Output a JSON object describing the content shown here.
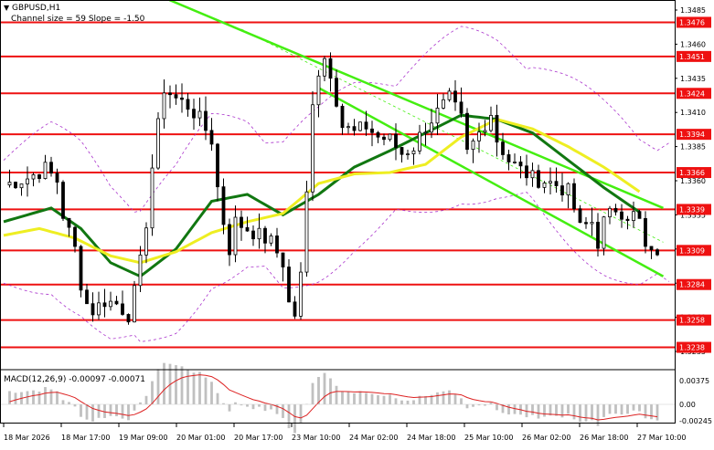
{
  "header": {
    "symbol": "GBPUSD,H1",
    "indicator_label": "Channel size = 59 Slope = -1.50"
  },
  "macd": {
    "label": "MACD(12,26,9) -0.00097 -0.00071",
    "scale_labels": [
      "0.00375",
      "0.00",
      "-0.00245"
    ]
  },
  "colors": {
    "candles": "#000000",
    "level_lines": "#ee1111",
    "level_tag_bg": "#ee1111",
    "channel": "#44ee11",
    "ma_fast": "#117711",
    "ma_slow": "#eeee22",
    "bollinger": "#aa33cc",
    "macd_hist": "#c0c0c0",
    "macd_signal": "#dd2222"
  },
  "chart_data": {
    "type": "candlestick",
    "title": "GBPUSD,H1",
    "ylim": [
      1.3225,
      1.3487
    ],
    "price_axis_ticks": [
      "1.3485",
      "1.3460",
      "1.3435",
      "1.3410",
      "1.3385",
      "1.3360",
      "1.3335",
      "1.3310",
      "1.3285",
      "1.3260",
      "1.3235"
    ],
    "levels": [
      {
        "label": "1.3476",
        "value": 1.3476
      },
      {
        "label": "1.3451",
        "value": 1.3451
      },
      {
        "label": "1.3424",
        "value": 1.3424
      },
      {
        "label": "1.3394",
        "value": 1.3394
      },
      {
        "label": "1.3366",
        "value": 1.3366
      },
      {
        "label": "1.3339",
        "value": 1.3339
      },
      {
        "label": "1.3309",
        "value": 1.3309
      },
      {
        "label": "1.3284",
        "value": 1.3284
      },
      {
        "label": "1.3258",
        "value": 1.3258
      },
      {
        "label": "1.3238",
        "value": 1.3238
      }
    ],
    "time_axis_labels": [
      "18 Mar 2026",
      "18 Mar 17:00",
      "19 Mar 09:00",
      "20 Mar 01:00",
      "20 Mar 17:00",
      "23 Mar 10:00",
      "24 Mar 02:00",
      "24 Mar 18:00",
      "25 Mar 10:00",
      "26 Mar 02:00",
      "26 Mar 18:00",
      "27 Mar 10:00"
    ],
    "price_path": [
      [
        0,
        1.3357
      ],
      [
        4,
        1.3362
      ],
      [
        7,
        1.3369
      ],
      [
        9,
        1.336
      ],
      [
        10,
        1.3335
      ],
      [
        12,
        1.331
      ],
      [
        13,
        1.3285
      ],
      [
        14,
        1.327
      ],
      [
        15,
        1.3265
      ],
      [
        17,
        1.3272
      ],
      [
        19,
        1.327
      ],
      [
        21,
        1.3262
      ],
      [
        22,
        1.3278
      ],
      [
        23,
        1.33
      ],
      [
        24,
        1.333
      ],
      [
        25,
        1.337
      ],
      [
        26,
        1.34
      ],
      [
        27,
        1.3428
      ],
      [
        29,
        1.342
      ],
      [
        31,
        1.3415
      ],
      [
        33,
        1.3405
      ],
      [
        35,
        1.339
      ],
      [
        36,
        1.3355
      ],
      [
        37,
        1.333
      ],
      [
        38,
        1.331
      ],
      [
        39,
        1.333
      ],
      [
        41,
        1.3325
      ],
      [
        43,
        1.332
      ],
      [
        45,
        1.3315
      ],
      [
        47,
        1.33
      ],
      [
        48,
        1.327
      ],
      [
        49,
        1.3262
      ],
      [
        50,
        1.329
      ],
      [
        51,
        1.335
      ],
      [
        52,
        1.342
      ],
      [
        53,
        1.344
      ],
      [
        54,
        1.345
      ],
      [
        55,
        1.344
      ],
      [
        56,
        1.342
      ],
      [
        57,
        1.34
      ],
      [
        59,
        1.3395
      ],
      [
        61,
        1.34
      ],
      [
        63,
        1.3392
      ],
      [
        65,
        1.339
      ],
      [
        67,
        1.338
      ],
      [
        69,
        1.3385
      ],
      [
        71,
        1.34
      ],
      [
        73,
        1.341
      ],
      [
        75,
        1.342
      ],
      [
        77,
        1.3405
      ],
      [
        78,
        1.338
      ],
      [
        80,
        1.3395
      ],
      [
        82,
        1.341
      ],
      [
        83,
        1.339
      ],
      [
        85,
        1.3375
      ],
      [
        87,
        1.3368
      ],
      [
        89,
        1.3362
      ],
      [
        91,
        1.336
      ],
      [
        93,
        1.3357
      ],
      [
        95,
        1.3352
      ],
      [
        96,
        1.334
      ],
      [
        97,
        1.3325
      ],
      [
        99,
        1.333
      ],
      [
        100,
        1.3315
      ],
      [
        101,
        1.333
      ],
      [
        103,
        1.334
      ],
      [
        105,
        1.3335
      ],
      [
        106,
        1.3335
      ],
      [
        107,
        1.333
      ],
      [
        108,
        1.331
      ],
      [
        109,
        1.3305
      ],
      [
        110,
        1.3309
      ]
    ],
    "series": [
      {
        "values": [
          [
            0,
            1.333
          ],
          [
            8,
            1.334
          ],
          [
            13,
            1.3325
          ],
          [
            18,
            1.33
          ],
          [
            23,
            1.329
          ],
          [
            29,
            1.331
          ],
          [
            35,
            1.3345
          ],
          [
            41,
            1.335
          ],
          [
            47,
            1.3335
          ],
          [
            53,
            1.335
          ],
          [
            59,
            1.337
          ],
          [
            65,
            1.3382
          ],
          [
            71,
            1.3395
          ],
          [
            77,
            1.3408
          ],
          [
            83,
            1.3405
          ],
          [
            89,
            1.3395
          ],
          [
            95,
            1.3375
          ],
          [
            101,
            1.3355
          ],
          [
            107,
            1.3337
          ]
        ]
      },
      {
        "values": [
          [
            0,
            1.332
          ],
          [
            6,
            1.3325
          ],
          [
            12,
            1.3318
          ],
          [
            18,
            1.3305
          ],
          [
            23,
            1.33
          ],
          [
            29,
            1.3308
          ],
          [
            35,
            1.3322
          ],
          [
            41,
            1.333
          ],
          [
            47,
            1.3336
          ],
          [
            53,
            1.3358
          ],
          [
            59,
            1.3365
          ],
          [
            65,
            1.3366
          ],
          [
            71,
            1.3372
          ],
          [
            77,
            1.3392
          ],
          [
            83,
            1.3405
          ],
          [
            89,
            1.3398
          ],
          [
            95,
            1.3385
          ],
          [
            101,
            1.337
          ],
          [
            107,
            1.3352
          ]
        ]
      }
    ],
    "channel": {
      "upper": [
        [
          27,
          1.3494
        ],
        [
          111,
          1.334
        ]
      ],
      "lower": [
        [
          53,
          1.3428
        ],
        [
          111,
          1.329
        ]
      ]
    }
  }
}
